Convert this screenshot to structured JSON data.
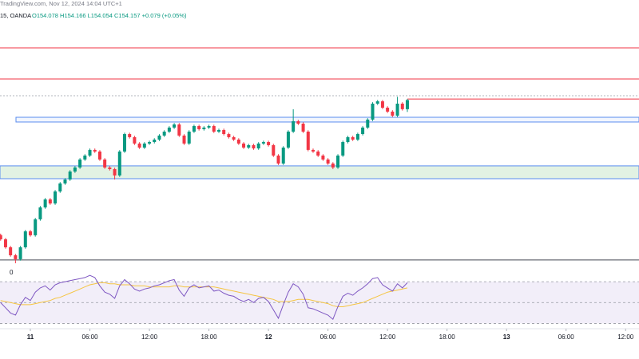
{
  "chart_data": {
    "type": "candlestick",
    "title": "TradingView.com, Nov 12, 2024 14:04 UTC+1",
    "symbol": "15, OANDA",
    "ohlc_label": "O154.078 H154.166 L154.054 C154.157 +0.079 (+0.05%)",
    "annotation": "0",
    "up_color": "#089981",
    "down_color": "#f23645",
    "xlim": [
      -3.06,
      61.35
    ],
    "xticks": [
      {
        "value": 0,
        "label": "11"
      },
      {
        "value": 6,
        "label": "06:00"
      },
      {
        "value": 12,
        "label": "12:00"
      },
      {
        "value": 18,
        "label": "18:00"
      },
      {
        "value": 24,
        "label": "12"
      },
      {
        "value": 30,
        "label": "06:00"
      },
      {
        "value": 36,
        "label": "12:00"
      },
      {
        "value": 42,
        "label": "18:00"
      },
      {
        "value": 48,
        "label": "13"
      },
      {
        "value": 54,
        "label": "06:00"
      },
      {
        "value": 60,
        "label": "12:00"
      }
    ],
    "ylim": [
      152.677,
      154.884
    ],
    "x": [
      -3,
      -2.5,
      -2,
      -1.5,
      -1,
      -0.5,
      0,
      0.5,
      1,
      1.5,
      2,
      2.5,
      3,
      3.5,
      4,
      4.5,
      5,
      5.5,
      6,
      6.5,
      7,
      7.5,
      8,
      8.5,
      9,
      9.5,
      10,
      10.5,
      11,
      11.5,
      12,
      12.5,
      13,
      13.5,
      14,
      14.5,
      15,
      15.5,
      16,
      16.5,
      17,
      17.5,
      18,
      18.5,
      19,
      19.5,
      20,
      20.5,
      21,
      21.5,
      22,
      22.5,
      23,
      23.5,
      24,
      24.5,
      25,
      25.5,
      26,
      26.5,
      27,
      27.5,
      28,
      28.5,
      29,
      29.5,
      30,
      30.5,
      31,
      31.5,
      32,
      32.5,
      33,
      33.5,
      34,
      34.5,
      35,
      35.5,
      36,
      36.5,
      37,
      37.5,
      38
    ],
    "ohlc": [
      [
        152.99,
        153.002,
        152.941,
        152.953
      ],
      [
        152.953,
        152.965,
        152.872,
        152.884
      ],
      [
        152.884,
        152.896,
        152.803,
        152.815
      ],
      [
        152.815,
        152.827,
        152.746,
        152.781
      ],
      [
        152.781,
        152.896,
        152.769,
        152.884
      ],
      [
        152.884,
        153.034,
        152.872,
        153.022
      ],
      [
        153.022,
        153.034,
        152.976,
        152.988
      ],
      [
        152.988,
        153.138,
        152.976,
        153.126
      ],
      [
        153.126,
        153.241,
        153.114,
        153.229
      ],
      [
        153.229,
        153.31,
        153.217,
        153.298
      ],
      [
        153.298,
        153.31,
        153.251,
        153.263
      ],
      [
        153.263,
        153.379,
        153.251,
        153.367
      ],
      [
        153.367,
        153.448,
        153.355,
        153.436
      ],
      [
        153.436,
        153.482,
        153.424,
        153.47
      ],
      [
        153.47,
        153.551,
        153.458,
        153.539
      ],
      [
        153.539,
        153.586,
        153.527,
        153.574
      ],
      [
        153.574,
        153.655,
        153.562,
        153.643
      ],
      [
        153.643,
        153.689,
        153.631,
        153.677
      ],
      [
        153.677,
        153.738,
        153.665,
        153.726
      ],
      [
        153.726,
        153.738,
        153.7,
        153.712
      ],
      [
        153.712,
        153.724,
        153.631,
        153.643
      ],
      [
        153.643,
        153.655,
        153.562,
        153.574
      ],
      [
        153.574,
        153.586,
        153.548,
        153.56
      ],
      [
        153.56,
        153.572,
        153.47,
        153.505
      ],
      [
        153.505,
        153.724,
        153.493,
        153.712
      ],
      [
        153.712,
        153.875,
        153.7,
        153.863
      ],
      [
        153.863,
        153.875,
        153.824,
        153.836
      ],
      [
        153.836,
        153.848,
        153.769,
        153.781
      ],
      [
        153.781,
        153.793,
        153.734,
        153.746
      ],
      [
        153.746,
        153.793,
        153.734,
        153.781
      ],
      [
        153.781,
        153.806,
        153.769,
        153.794
      ],
      [
        153.794,
        153.827,
        153.782,
        153.815
      ],
      [
        153.815,
        153.862,
        153.803,
        153.85
      ],
      [
        153.85,
        153.896,
        153.838,
        153.884
      ],
      [
        153.884,
        153.931,
        153.872,
        153.919
      ],
      [
        153.919,
        153.958,
        153.907,
        153.946
      ],
      [
        153.946,
        153.958,
        153.838,
        153.85
      ],
      [
        153.85,
        153.862,
        153.769,
        153.781
      ],
      [
        153.781,
        153.896,
        153.769,
        153.884
      ],
      [
        153.884,
        153.944,
        153.872,
        153.932
      ],
      [
        153.932,
        153.944,
        153.893,
        153.905
      ],
      [
        153.905,
        153.931,
        153.893,
        153.919
      ],
      [
        153.919,
        153.944,
        153.907,
        153.932
      ],
      [
        153.932,
        153.944,
        153.872,
        153.884
      ],
      [
        153.884,
        153.91,
        153.872,
        153.898
      ],
      [
        153.898,
        153.91,
        153.851,
        153.863
      ],
      [
        153.863,
        153.875,
        153.824,
        153.836
      ],
      [
        153.836,
        153.848,
        153.803,
        153.815
      ],
      [
        153.815,
        153.827,
        153.769,
        153.781
      ],
      [
        153.781,
        153.793,
        153.734,
        153.746
      ],
      [
        153.746,
        153.779,
        153.734,
        153.767
      ],
      [
        153.767,
        153.779,
        153.727,
        153.739
      ],
      [
        153.739,
        153.793,
        153.727,
        153.781
      ],
      [
        153.781,
        153.806,
        153.769,
        153.794
      ],
      [
        153.794,
        153.806,
        153.755,
        153.767
      ],
      [
        153.767,
        153.779,
        153.665,
        153.677
      ],
      [
        153.677,
        153.689,
        153.596,
        153.608
      ],
      [
        153.608,
        153.758,
        153.596,
        153.746
      ],
      [
        153.746,
        153.896,
        153.734,
        153.884
      ],
      [
        153.884,
        154.077,
        153.872,
        153.974
      ],
      [
        153.974,
        153.986,
        153.941,
        153.953
      ],
      [
        153.953,
        153.965,
        153.872,
        153.884
      ],
      [
        153.884,
        153.896,
        153.714,
        153.726
      ],
      [
        153.726,
        153.738,
        153.7,
        153.712
      ],
      [
        153.712,
        153.724,
        153.665,
        153.677
      ],
      [
        153.677,
        153.689,
        153.631,
        153.643
      ],
      [
        153.643,
        153.655,
        153.596,
        153.608
      ],
      [
        153.608,
        153.62,
        153.56,
        153.574
      ],
      [
        153.574,
        153.689,
        153.562,
        153.677
      ],
      [
        153.677,
        153.806,
        153.665,
        153.794
      ],
      [
        153.794,
        153.848,
        153.782,
        153.836
      ],
      [
        153.836,
        153.848,
        153.803,
        153.815
      ],
      [
        153.815,
        153.875,
        153.803,
        153.863
      ],
      [
        153.863,
        153.931,
        153.851,
        153.919
      ],
      [
        153.919,
        154.0,
        153.907,
        153.988
      ],
      [
        153.988,
        154.138,
        153.976,
        154.126
      ],
      [
        154.126,
        154.158,
        154.114,
        154.146
      ],
      [
        154.146,
        154.158,
        154.079,
        154.091
      ],
      [
        154.091,
        154.103,
        154.045,
        154.057
      ],
      [
        154.057,
        154.069,
        154.01,
        154.022
      ],
      [
        154.022,
        154.185,
        154.01,
        154.126
      ],
      [
        154.126,
        154.138,
        154.066,
        154.078
      ],
      [
        154.078,
        154.166,
        154.054,
        154.157
      ]
    ],
    "levels": [
      {
        "value": 154.608,
        "color": "#f23645",
        "x_start": -3.06
      },
      {
        "value": 154.339,
        "color": "#f23645",
        "x_start": -3.06
      },
      {
        "value": 154.194,
        "color": "#b2b5be",
        "x_start": -3.06,
        "dashed": true
      },
      {
        "value": 154.166,
        "color": "#f23645",
        "x_start": 38
      },
      {
        "value": 152.774,
        "color": "#434651",
        "x_start": -3.06
      }
    ],
    "zones": [
      {
        "from": 153.967,
        "to": 154.008,
        "x_start": -1.45,
        "color": "#5b8def",
        "fill": "rgba(91,141,239,0.08)"
      },
      {
        "from": 153.477,
        "to": 153.588,
        "x_start": -3.06,
        "color": "#5b8def",
        "fill": "rgba(76,175,80,0.16)"
      }
    ],
    "rsi": {
      "ylim": [
        25,
        80
      ],
      "band": [
        30,
        70
      ],
      "mid": 50,
      "color": "#7e57c2",
      "ma_color": "#f5c542",
      "values": [
        50,
        45,
        40,
        38,
        48,
        55,
        52,
        60,
        64,
        66,
        62,
        67,
        69,
        70,
        71,
        72,
        73,
        74,
        76,
        74,
        66,
        60,
        58,
        54,
        66,
        72,
        68,
        63,
        61,
        63,
        64,
        66,
        67,
        69,
        71,
        72,
        62,
        56,
        64,
        67,
        64,
        65,
        66,
        61,
        62,
        59,
        57,
        56,
        53,
        51,
        53,
        50,
        54,
        55,
        51,
        43,
        35,
        48,
        60,
        68,
        65,
        58,
        45,
        44,
        42,
        40,
        38,
        34,
        46,
        56,
        59,
        57,
        61,
        64,
        68,
        73,
        74,
        67,
        64,
        61,
        68,
        64,
        69
      ],
      "ma": [
        52,
        51,
        50,
        49,
        48,
        48,
        48,
        49,
        50,
        51,
        52,
        54,
        55,
        57,
        59,
        61,
        63,
        65,
        67,
        68,
        69,
        69,
        68,
        68,
        67,
        67,
        67,
        66,
        66,
        66,
        65,
        65,
        65,
        65,
        65,
        66,
        66,
        65,
        65,
        65,
        65,
        65,
        65,
        65,
        64,
        63,
        62,
        61,
        60,
        59,
        58,
        57,
        56,
        55,
        54,
        53,
        51,
        51,
        51,
        52,
        53,
        53,
        53,
        52,
        51,
        50,
        49,
        47,
        46,
        46,
        47,
        48,
        49,
        50,
        52,
        54,
        56,
        58,
        60,
        61,
        62,
        63,
        64
      ]
    }
  }
}
